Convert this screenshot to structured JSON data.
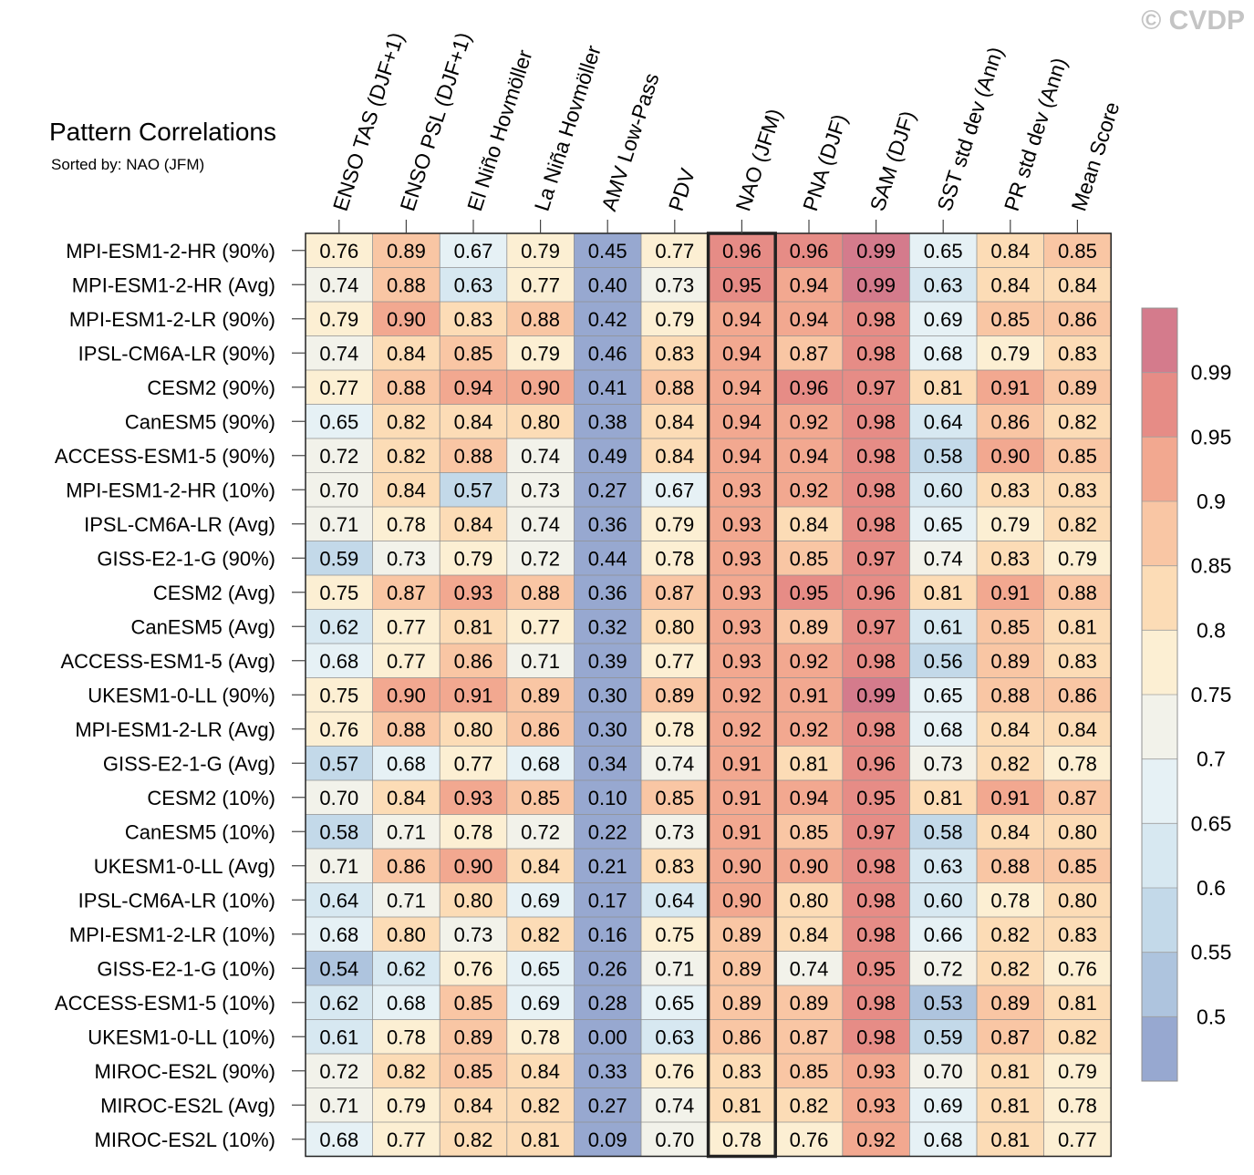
{
  "copyright": "© CVDP",
  "chart_data": {
    "type": "heatmap",
    "title": "Pattern Correlations",
    "subtitle": "Sorted by: NAO (JFM)",
    "highlight_column": "NAO (JFM)",
    "columns": [
      "ENSO TAS (DJF+1)",
      "ENSO PSL (DJF+1)",
      "El Niño Hovmöller",
      "La Niña Hovmöller",
      "AMV Low-Pass",
      "PDV",
      "NAO (JFM)",
      "PNA (DJF)",
      "SAM (DJF)",
      "SST std dev (Ann)",
      "PR std dev (Ann)",
      "Mean Score"
    ],
    "rows": [
      {
        "name": "MPI-ESM1-2-HR (90%)",
        "values": [
          "0.76",
          "0.89",
          "0.67",
          "0.79",
          "0.45",
          "0.77",
          "0.96",
          "0.96",
          "0.99",
          "0.65",
          "0.84",
          "0.85"
        ]
      },
      {
        "name": "MPI-ESM1-2-HR (Avg)",
        "values": [
          "0.74",
          "0.88",
          "0.63",
          "0.77",
          "0.40",
          "0.73",
          "0.95",
          "0.94",
          "0.99",
          "0.63",
          "0.84",
          "0.84"
        ]
      },
      {
        "name": "MPI-ESM1-2-LR (90%)",
        "values": [
          "0.79",
          "0.90",
          "0.83",
          "0.88",
          "0.42",
          "0.79",
          "0.94",
          "0.94",
          "0.98",
          "0.69",
          "0.85",
          "0.86"
        ]
      },
      {
        "name": "IPSL-CM6A-LR (90%)",
        "values": [
          "0.74",
          "0.84",
          "0.85",
          "0.79",
          "0.46",
          "0.83",
          "0.94",
          "0.87",
          "0.98",
          "0.68",
          "0.79",
          "0.83"
        ]
      },
      {
        "name": "CESM2 (90%)",
        "values": [
          "0.77",
          "0.88",
          "0.94",
          "0.90",
          "0.41",
          "0.88",
          "0.94",
          "0.96",
          "0.97",
          "0.81",
          "0.91",
          "0.89"
        ]
      },
      {
        "name": "CanESM5 (90%)",
        "values": [
          "0.65",
          "0.82",
          "0.84",
          "0.80",
          "0.38",
          "0.84",
          "0.94",
          "0.92",
          "0.98",
          "0.64",
          "0.86",
          "0.82"
        ]
      },
      {
        "name": "ACCESS-ESM1-5 (90%)",
        "values": [
          "0.72",
          "0.82",
          "0.88",
          "0.74",
          "0.49",
          "0.84",
          "0.94",
          "0.94",
          "0.98",
          "0.58",
          "0.90",
          "0.85"
        ]
      },
      {
        "name": "MPI-ESM1-2-HR (10%)",
        "values": [
          "0.70",
          "0.84",
          "0.57",
          "0.73",
          "0.27",
          "0.67",
          "0.93",
          "0.92",
          "0.98",
          "0.60",
          "0.83",
          "0.83"
        ]
      },
      {
        "name": "IPSL-CM6A-LR (Avg)",
        "values": [
          "0.71",
          "0.78",
          "0.84",
          "0.74",
          "0.36",
          "0.79",
          "0.93",
          "0.84",
          "0.98",
          "0.65",
          "0.79",
          "0.82"
        ]
      },
      {
        "name": "GISS-E2-1-G (90%)",
        "values": [
          "0.59",
          "0.73",
          "0.79",
          "0.72",
          "0.44",
          "0.78",
          "0.93",
          "0.85",
          "0.97",
          "0.74",
          "0.83",
          "0.79"
        ]
      },
      {
        "name": "CESM2 (Avg)",
        "values": [
          "0.75",
          "0.87",
          "0.93",
          "0.88",
          "0.36",
          "0.87",
          "0.93",
          "0.95",
          "0.96",
          "0.81",
          "0.91",
          "0.88"
        ]
      },
      {
        "name": "CanESM5 (Avg)",
        "values": [
          "0.62",
          "0.77",
          "0.81",
          "0.77",
          "0.32",
          "0.80",
          "0.93",
          "0.89",
          "0.97",
          "0.61",
          "0.85",
          "0.81"
        ]
      },
      {
        "name": "ACCESS-ESM1-5 (Avg)",
        "values": [
          "0.68",
          "0.77",
          "0.86",
          "0.71",
          "0.39",
          "0.77",
          "0.93",
          "0.92",
          "0.98",
          "0.56",
          "0.89",
          "0.83"
        ]
      },
      {
        "name": "UKESM1-0-LL (90%)",
        "values": [
          "0.75",
          "0.90",
          "0.91",
          "0.89",
          "0.30",
          "0.89",
          "0.92",
          "0.91",
          "0.99",
          "0.65",
          "0.88",
          "0.86"
        ]
      },
      {
        "name": "MPI-ESM1-2-LR (Avg)",
        "values": [
          "0.76",
          "0.88",
          "0.80",
          "0.86",
          "0.30",
          "0.78",
          "0.92",
          "0.92",
          "0.98",
          "0.68",
          "0.84",
          "0.84"
        ]
      },
      {
        "name": "GISS-E2-1-G (Avg)",
        "values": [
          "0.57",
          "0.68",
          "0.77",
          "0.68",
          "0.34",
          "0.74",
          "0.91",
          "0.81",
          "0.96",
          "0.73",
          "0.82",
          "0.78"
        ]
      },
      {
        "name": "CESM2 (10%)",
        "values": [
          "0.70",
          "0.84",
          "0.93",
          "0.85",
          "0.10",
          "0.85",
          "0.91",
          "0.94",
          "0.95",
          "0.81",
          "0.91",
          "0.87"
        ]
      },
      {
        "name": "CanESM5 (10%)",
        "values": [
          "0.58",
          "0.71",
          "0.78",
          "0.72",
          "0.22",
          "0.73",
          "0.91",
          "0.85",
          "0.97",
          "0.58",
          "0.84",
          "0.80"
        ]
      },
      {
        "name": "UKESM1-0-LL (Avg)",
        "values": [
          "0.71",
          "0.86",
          "0.90",
          "0.84",
          "0.21",
          "0.83",
          "0.90",
          "0.90",
          "0.98",
          "0.63",
          "0.88",
          "0.85"
        ]
      },
      {
        "name": "IPSL-CM6A-LR (10%)",
        "values": [
          "0.64",
          "0.71",
          "0.80",
          "0.69",
          "0.17",
          "0.64",
          "0.90",
          "0.80",
          "0.98",
          "0.60",
          "0.78",
          "0.80"
        ]
      },
      {
        "name": "MPI-ESM1-2-LR (10%)",
        "values": [
          "0.68",
          "0.80",
          "0.73",
          "0.82",
          "0.16",
          "0.75",
          "0.89",
          "0.84",
          "0.98",
          "0.66",
          "0.82",
          "0.83"
        ]
      },
      {
        "name": "GISS-E2-1-G (10%)",
        "values": [
          "0.54",
          "0.62",
          "0.76",
          "0.65",
          "0.26",
          "0.71",
          "0.89",
          "0.74",
          "0.95",
          "0.72",
          "0.82",
          "0.76"
        ]
      },
      {
        "name": "ACCESS-ESM1-5 (10%)",
        "values": [
          "0.62",
          "0.68",
          "0.85",
          "0.69",
          "0.28",
          "0.65",
          "0.89",
          "0.89",
          "0.98",
          "0.53",
          "0.89",
          "0.81"
        ]
      },
      {
        "name": "UKESM1-0-LL (10%)",
        "values": [
          "0.61",
          "0.78",
          "0.89",
          "0.78",
          "0.00",
          "0.63",
          "0.86",
          "0.87",
          "0.98",
          "0.59",
          "0.87",
          "0.82"
        ]
      },
      {
        "name": "MIROC-ES2L (90%)",
        "values": [
          "0.72",
          "0.82",
          "0.85",
          "0.84",
          "0.33",
          "0.76",
          "0.83",
          "0.85",
          "0.93",
          "0.70",
          "0.81",
          "0.79"
        ]
      },
      {
        "name": "MIROC-ES2L (Avg)",
        "values": [
          "0.71",
          "0.79",
          "0.84",
          "0.82",
          "0.27",
          "0.74",
          "0.81",
          "0.82",
          "0.93",
          "0.69",
          "0.81",
          "0.78"
        ]
      },
      {
        "name": "MIROC-ES2L (10%)",
        "values": [
          "0.68",
          "0.77",
          "0.82",
          "0.81",
          "0.09",
          "0.70",
          "0.78",
          "0.76",
          "0.92",
          "0.68",
          "0.81",
          "0.77"
        ]
      }
    ],
    "colorbar": {
      "labels": [
        "0.99",
        "0.95",
        "0.9",
        "0.85",
        "0.8",
        "0.75",
        "0.7",
        "0.65",
        "0.6",
        "0.55",
        "0.5"
      ],
      "bins": [
        0.5,
        0.55,
        0.6,
        0.65,
        0.7,
        0.75,
        0.8,
        0.85,
        0.9,
        0.95,
        0.99
      ],
      "colors": [
        "#97a8d0",
        "#aec4de",
        "#c3d9e9",
        "#d7e8f1",
        "#e6f1f5",
        "#f2f2ea",
        "#fcefd3",
        "#fcdcb6",
        "#f9c6a4",
        "#f2a890",
        "#e68c86",
        "#d47b8c"
      ]
    }
  }
}
